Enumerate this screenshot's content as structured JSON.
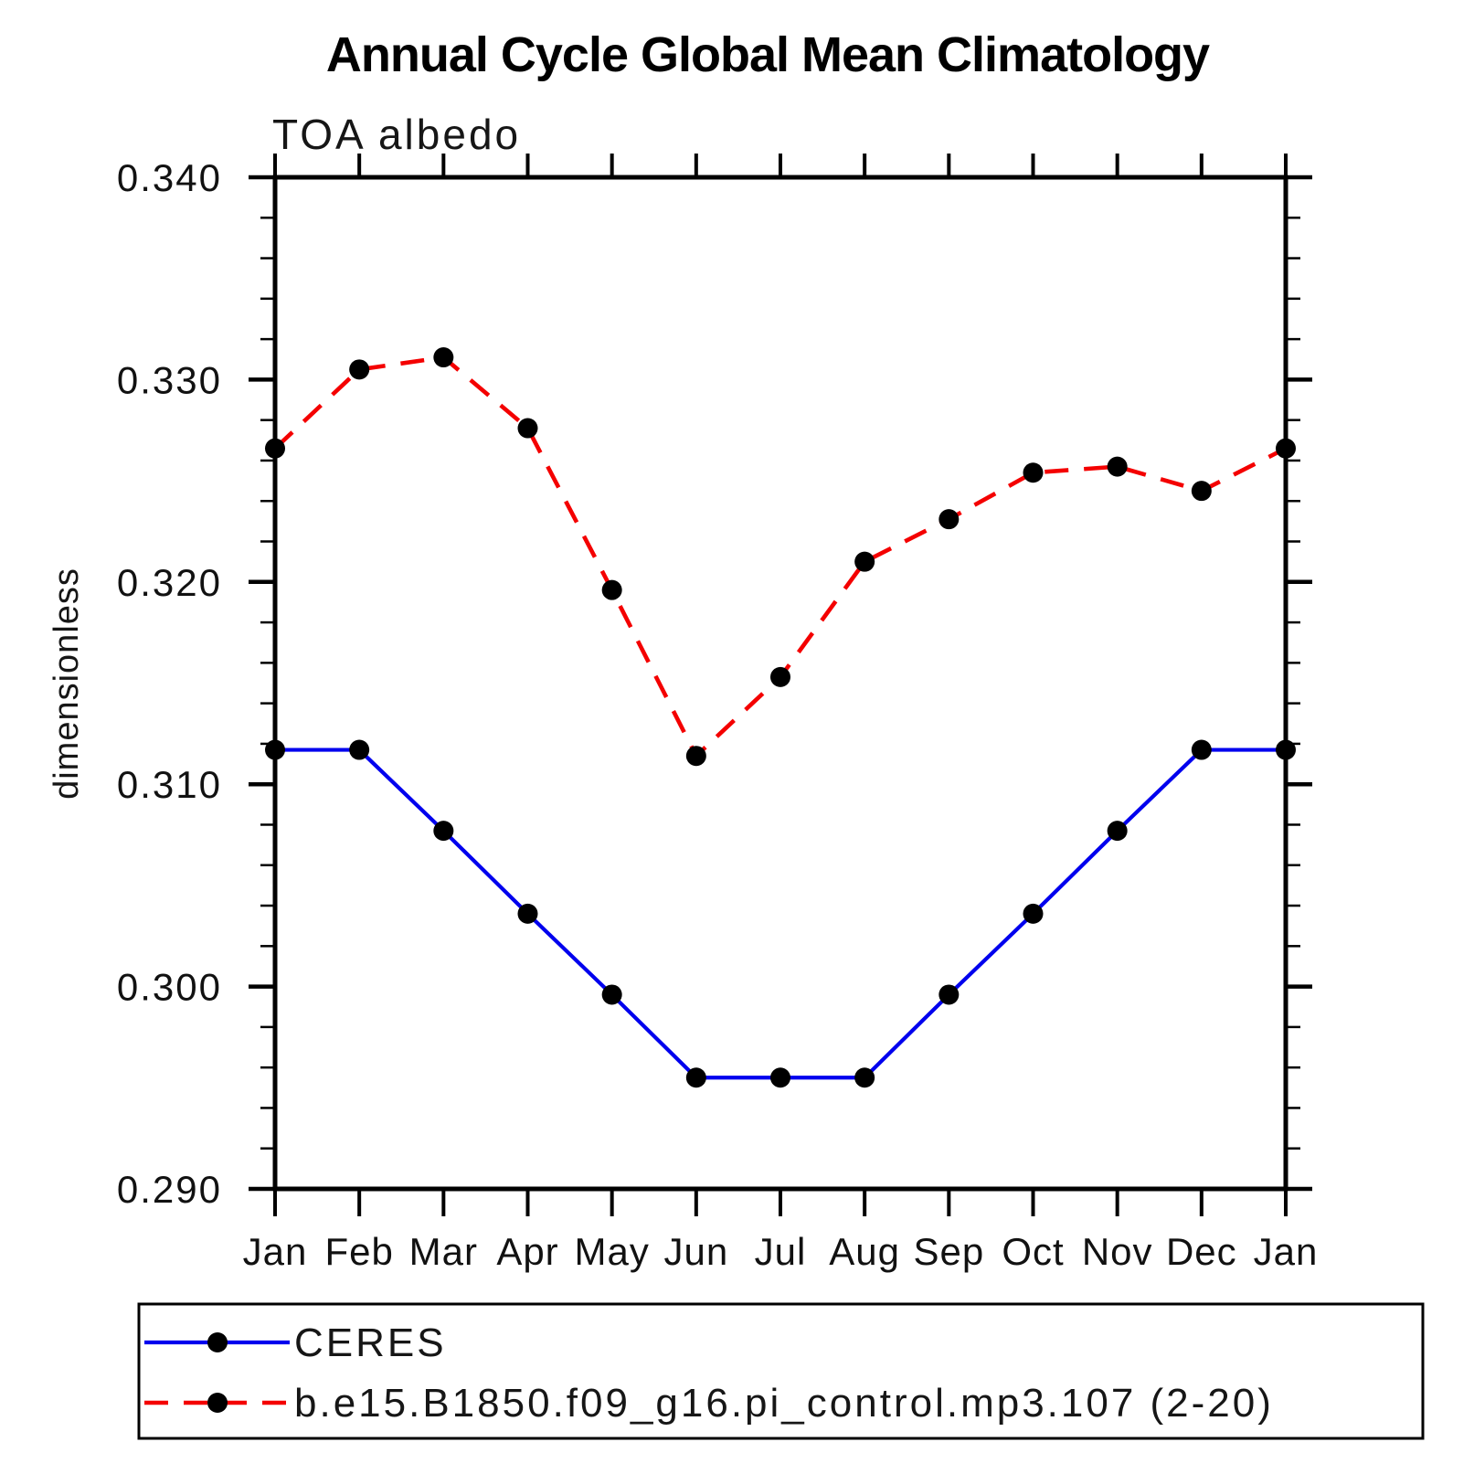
{
  "figure": {
    "background": "#ffffff",
    "frame_color": "#000000",
    "text_color": "#161616"
  },
  "chart_data": {
    "type": "line",
    "title": "Annual Cycle Global Mean Climatology",
    "subtitle": "TOA albedo",
    "xlabel": "",
    "ylabel": "dimensionless",
    "categories": [
      "Jan",
      "Feb",
      "Mar",
      "Apr",
      "May",
      "Jun",
      "Jul",
      "Aug",
      "Sep",
      "Oct",
      "Nov",
      "Dec",
      "Jan"
    ],
    "series": [
      {
        "name": "CERES",
        "color": "#0000ee",
        "line_style": "solid",
        "line_width": 4.2,
        "marker": "filled-circle",
        "marker_color": "#000000",
        "values": [
          0.3117,
          0.3117,
          0.3077,
          0.3036,
          0.2996,
          0.2955,
          0.2955,
          0.2955,
          0.2996,
          0.3036,
          0.3077,
          0.3117,
          0.3117
        ]
      },
      {
        "name": "b.e15.B1850.f09_g16.pi_control.mp3.107 (2-20)",
        "color": "#f40000",
        "line_style": "dashed",
        "line_width": 4.6,
        "marker": "filled-circle",
        "marker_color": "#000000",
        "values": [
          0.3266,
          0.3305,
          0.3311,
          0.3276,
          0.3196,
          0.3114,
          0.3153,
          0.321,
          0.3231,
          0.3254,
          0.3257,
          0.3245,
          0.3266
        ]
      }
    ],
    "ylim": [
      0.29,
      0.34
    ],
    "yticks": [
      0.34,
      0.33,
      0.32,
      0.31,
      0.3,
      0.29
    ],
    "ytick_labels": [
      "0.340",
      "0.330",
      "0.320",
      "0.310",
      "0.300",
      "0.290"
    ],
    "major_tick_step": 0.01,
    "minor_tick_step": 0.002,
    "grid": false,
    "legend_position": "bottom-left-box"
  }
}
